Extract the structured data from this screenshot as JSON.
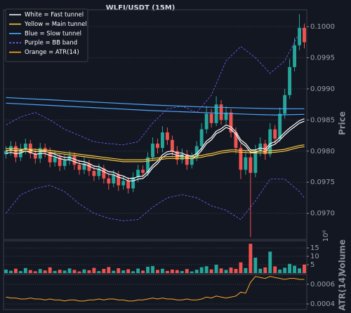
{
  "chart_data": [
    {
      "type": "candlestick",
      "title": "WLFI/USDT (15M)",
      "ylabel": "Price",
      "ylim": [
        0.09658,
        0.10027
      ],
      "yticks": [
        {
          "value": 0.097,
          "label": "0.0970"
        },
        0.0975,
        {
          "value": 0.098,
          "label": "0.0980"
        },
        0.0985,
        {
          "value": 0.099,
          "label": "0.0990"
        },
        0.0995,
        {
          "value": 0.1,
          "label": "0.1000"
        }
      ],
      "grid": true,
      "legend": "upper left",
      "up_color": "#26a69a",
      "down_color": "#ef5350",
      "open": [
        0.09795,
        0.098,
        0.09808,
        0.0979,
        0.09802,
        0.09812,
        0.09796,
        0.09788,
        0.09805,
        0.09798,
        0.09782,
        0.0979,
        0.09776,
        0.09785,
        0.09792,
        0.09778,
        0.0977,
        0.0978,
        0.09768,
        0.0976,
        0.09772,
        0.09756,
        0.09748,
        0.09762,
        0.09745,
        0.09752,
        0.0974,
        0.09758,
        0.0977,
        0.09765,
        0.0979,
        0.09812,
        0.09805,
        0.0983,
        0.09818,
        0.098,
        0.09786,
        0.09795,
        0.09778,
        0.0979,
        0.09808,
        0.09835,
        0.0986,
        0.09845,
        0.09875,
        0.0985,
        0.09862,
        0.0983,
        0.09805,
        0.0977,
        0.0979,
        0.09765,
        0.098,
        0.09812,
        0.09795,
        0.09835,
        0.0982,
        0.0986,
        0.0989,
        0.09935,
        0.0997,
        0.09998
      ],
      "high": [
        0.09808,
        0.09816,
        0.09815,
        0.09812,
        0.0982,
        0.09818,
        0.09804,
        0.09813,
        0.09812,
        0.09806,
        0.09799,
        0.09796,
        0.09794,
        0.098,
        0.09798,
        0.09786,
        0.0979,
        0.09786,
        0.09776,
        0.0978,
        0.09778,
        0.09764,
        0.0977,
        0.09768,
        0.0976,
        0.09758,
        0.09766,
        0.09778,
        0.09777,
        0.09798,
        0.09822,
        0.0982,
        0.0984,
        0.09838,
        0.09825,
        0.09808,
        0.09804,
        0.09802,
        0.09798,
        0.09816,
        0.09845,
        0.09872,
        0.09868,
        0.09888,
        0.09882,
        0.09872,
        0.09868,
        0.09838,
        0.09812,
        0.098,
        0.09796,
        0.0981,
        0.09822,
        0.09818,
        0.09845,
        0.09842,
        0.0987,
        0.099,
        0.09948,
        0.09982,
        0.1002,
        0.10005
      ],
      "low": [
        0.09788,
        0.09793,
        0.09782,
        0.09784,
        0.09795,
        0.09788,
        0.0978,
        0.09781,
        0.0979,
        0.09774,
        0.09775,
        0.09768,
        0.0977,
        0.09778,
        0.0977,
        0.09762,
        0.09763,
        0.0976,
        0.09752,
        0.09754,
        0.09748,
        0.09738,
        0.09742,
        0.09736,
        0.09738,
        0.09732,
        0.09734,
        0.0975,
        0.09758,
        0.0976,
        0.09784,
        0.09796,
        0.09798,
        0.0981,
        0.09792,
        0.09778,
        0.0978,
        0.0977,
        0.09772,
        0.09784,
        0.098,
        0.09828,
        0.09838,
        0.0984,
        0.09842,
        0.09844,
        0.09822,
        0.09796,
        0.09755,
        0.09762,
        0.09662,
        0.09758,
        0.09792,
        0.09786,
        0.0979,
        0.09812,
        0.09815,
        0.09852,
        0.09884,
        0.09928,
        0.09962,
        0.09965
      ],
      "close": [
        0.098,
        0.09808,
        0.0979,
        0.09802,
        0.09812,
        0.09796,
        0.09788,
        0.09805,
        0.09798,
        0.09782,
        0.0979,
        0.09776,
        0.09785,
        0.09792,
        0.09778,
        0.0977,
        0.0978,
        0.09768,
        0.0976,
        0.09772,
        0.09756,
        0.09748,
        0.09762,
        0.09745,
        0.09752,
        0.0974,
        0.09758,
        0.0977,
        0.09765,
        0.0979,
        0.09812,
        0.09805,
        0.0983,
        0.09818,
        0.098,
        0.09786,
        0.09795,
        0.09778,
        0.0979,
        0.09808,
        0.09835,
        0.0986,
        0.09845,
        0.09875,
        0.0985,
        0.09862,
        0.0983,
        0.09805,
        0.0977,
        0.0979,
        0.09765,
        0.098,
        0.09812,
        0.09795,
        0.09835,
        0.0982,
        0.0986,
        0.0989,
        0.09935,
        0.0997,
        0.09998,
        0.09975
      ],
      "series": [
        {
          "name": "White = Fast tunnel",
          "color": "#ffffff",
          "style": "solid",
          "upper": [
            0.098,
            0.09802,
            0.098,
            0.09801,
            0.09804,
            0.09802,
            0.09799,
            0.098,
            0.098,
            0.09797,
            0.09795,
            0.09792,
            0.0979,
            0.0979,
            0.09787,
            0.09784,
            0.09783,
            0.0978,
            0.09776,
            0.09775,
            0.09771,
            0.09767,
            0.09766,
            0.09762,
            0.0976,
            0.09756,
            0.09756,
            0.09759,
            0.0976,
            0.09767,
            0.09777,
            0.09784,
            0.09794,
            0.09799,
            0.098,
            0.09797,
            0.09797,
            0.09793,
            0.09792,
            0.09796,
            0.09805,
            0.09816,
            0.09822,
            0.09832,
            0.09836,
            0.09842,
            0.09839,
            0.09831,
            0.09818,
            0.09812,
            0.09802,
            0.09802,
            0.09805,
            0.09803,
            0.09812,
            0.09815,
            0.09822,
            0.0983,
            0.09837,
            0.09843,
            0.09849,
            0.09852
          ],
          "lower": [
            0.09796,
            0.09798,
            0.09796,
            0.09797,
            0.098,
            0.09798,
            0.09795,
            0.09796,
            0.09796,
            0.09793,
            0.09791,
            0.09788,
            0.09786,
            0.09786,
            0.09783,
            0.0978,
            0.09779,
            0.09776,
            0.09772,
            0.09771,
            0.09767,
            0.09763,
            0.09762,
            0.09758,
            0.09756,
            0.09752,
            0.09752,
            0.09755,
            0.09756,
            0.09763,
            0.09773,
            0.0978,
            0.0979,
            0.09795,
            0.09796,
            0.09793,
            0.09793,
            0.09789,
            0.09788,
            0.09792,
            0.09801,
            0.09812,
            0.09818,
            0.09828,
            0.09832,
            0.09838,
            0.09835,
            0.09827,
            0.09814,
            0.09808,
            0.09798,
            0.09798,
            0.09801,
            0.09799,
            0.09808,
            0.09811,
            0.09818,
            0.09826,
            0.09833,
            0.09839,
            0.09845,
            0.09848
          ]
        },
        {
          "name": "Yellow = Main tunnel",
          "color": "#f5c542",
          "style": "solid",
          "upper": [
            0.09804,
            0.09804,
            0.09804,
            0.09803,
            0.09803,
            0.09803,
            0.09803,
            0.09802,
            0.09802,
            0.09801,
            0.098,
            0.09799,
            0.09798,
            0.09797,
            0.09796,
            0.09795,
            0.09794,
            0.09793,
            0.09792,
            0.09791,
            0.0979,
            0.09789,
            0.09788,
            0.09787,
            0.09786,
            0.09786,
            0.09786,
            0.09786,
            0.09786,
            0.09787,
            0.09788,
            0.09789,
            0.0979,
            0.09791,
            0.09791,
            0.09791,
            0.09791,
            0.09791,
            0.09791,
            0.09792,
            0.09793,
            0.09795,
            0.09796,
            0.09798,
            0.098,
            0.09801,
            0.09802,
            0.09802,
            0.09801,
            0.09801,
            0.098,
            0.098,
            0.098,
            0.098,
            0.09801,
            0.09801,
            0.09802,
            0.09803,
            0.09805,
            0.09807,
            0.09809,
            0.0981
          ],
          "lower": [
            0.09801,
            0.09801,
            0.09801,
            0.098,
            0.098,
            0.098,
            0.098,
            0.09799,
            0.09799,
            0.09798,
            0.09797,
            0.09796,
            0.09795,
            0.09794,
            0.09793,
            0.09792,
            0.09791,
            0.0979,
            0.09789,
            0.09788,
            0.09787,
            0.09786,
            0.09785,
            0.09784,
            0.09783,
            0.09783,
            0.09783,
            0.09783,
            0.09783,
            0.09784,
            0.09785,
            0.09786,
            0.09787,
            0.09788,
            0.09788,
            0.09788,
            0.09788,
            0.09788,
            0.09788,
            0.09789,
            0.0979,
            0.09792,
            0.09793,
            0.09795,
            0.09797,
            0.09798,
            0.09799,
            0.09799,
            0.09798,
            0.09798,
            0.09797,
            0.09797,
            0.09797,
            0.09797,
            0.09798,
            0.09798,
            0.09799,
            0.098,
            0.09802,
            0.09804,
            0.09806,
            0.09807
          ]
        },
        {
          "name": "Blue = Slow tunnel",
          "color": "#4da6ff",
          "style": "solid",
          "x": [
            0,
            10,
            20,
            30,
            40,
            50,
            55,
            61
          ],
          "upper": [
            0.09886,
            0.09882,
            0.09878,
            0.09874,
            0.09871,
            0.09869,
            0.09868,
            0.09868
          ],
          "lower": [
            0.09877,
            0.09873,
            0.09869,
            0.09865,
            0.09862,
            0.09859,
            0.09858,
            0.09859
          ]
        },
        {
          "name": "Purple = BB band",
          "color": "#7c5cff",
          "style": "dashed",
          "x": [
            0,
            3,
            6,
            9,
            12,
            15,
            18,
            21,
            24,
            27,
            30,
            33,
            36,
            39,
            42,
            45,
            48,
            51,
            54,
            57,
            60,
            61
          ],
          "upper": [
            0.09842,
            0.09855,
            0.09862,
            0.0985,
            0.09835,
            0.09825,
            0.09815,
            0.09812,
            0.0981,
            0.09815,
            0.09845,
            0.09868,
            0.09872,
            0.09862,
            0.0989,
            0.09945,
            0.09968,
            0.0995,
            0.09925,
            0.09945,
            0.0999,
            0.1
          ],
          "lower": [
            0.097,
            0.0973,
            0.0974,
            0.09745,
            0.09735,
            0.09715,
            0.097,
            0.09692,
            0.09688,
            0.0969,
            0.0971,
            0.09725,
            0.0973,
            0.09725,
            0.09712,
            0.09705,
            0.0969,
            0.0972,
            0.09755,
            0.09755,
            0.09735,
            0.09725
          ]
        }
      ]
    },
    {
      "type": "volume",
      "ylabel": "Volume",
      "offset_text": "10⁶",
      "ylim": [
        0,
        19.2
      ],
      "yticks": [
        5,
        10,
        15
      ],
      "grid": true,
      "values": [
        2.1,
        1.4,
        2.6,
        1.2,
        3.0,
        1.8,
        1.1,
        2.4,
        1.6,
        3.4,
        1.3,
        2.0,
        1.5,
        2.8,
        1.9,
        1.0,
        2.2,
        1.7,
        3.1,
        1.2,
        2.5,
        3.6,
        1.4,
        2.9,
        1.6,
        2.3,
        1.1,
        2.7,
        1.5,
        3.8,
        4.2,
        1.9,
        2.6,
        1.3,
        2.1,
        1.8,
        1.2,
        2.4,
        1.0,
        2.0,
        3.5,
        4.1,
        2.2,
        5.0,
        2.8,
        1.9,
        3.3,
        2.5,
        6.4,
        3.0,
        17.5,
        9.2,
        2.6,
        3.4,
        12.8,
        4.0,
        2.1,
        3.2,
        5.5,
        4.4,
        2.8,
        5.1
      ]
    },
    {
      "type": "line",
      "ylabel": "ATR(14)",
      "ylim": [
        0.000343,
        0.0007
      ],
      "yticks": [
        0.0004,
        0.0006
      ],
      "grid": true,
      "series": [
        {
          "name": "Orange = ATR(14)",
          "color": "#ffa726",
          "values": [
            0.00047,
            0.00046,
            0.00046,
            0.00045,
            0.00045,
            0.00046,
            0.00045,
            0.00045,
            0.00044,
            0.00045,
            0.00044,
            0.00044,
            0.00043,
            0.00044,
            0.00044,
            0.00043,
            0.00043,
            0.00044,
            0.00044,
            0.00045,
            0.00044,
            0.00045,
            0.00045,
            0.00044,
            0.00044,
            0.00043,
            0.00043,
            0.00044,
            0.00044,
            0.00045,
            0.00046,
            0.00045,
            0.00046,
            0.00045,
            0.00045,
            0.00044,
            0.00044,
            0.00045,
            0.00044,
            0.00044,
            0.00045,
            0.00047,
            0.00046,
            0.00048,
            0.00047,
            0.00046,
            0.00047,
            0.00048,
            0.00052,
            0.00051,
            0.00062,
            0.00068,
            0.00067,
            0.00066,
            0.00068,
            0.00067,
            0.00066,
            0.00065,
            0.00066,
            0.00066,
            0.00065,
            0.00065
          ]
        }
      ]
    }
  ]
}
